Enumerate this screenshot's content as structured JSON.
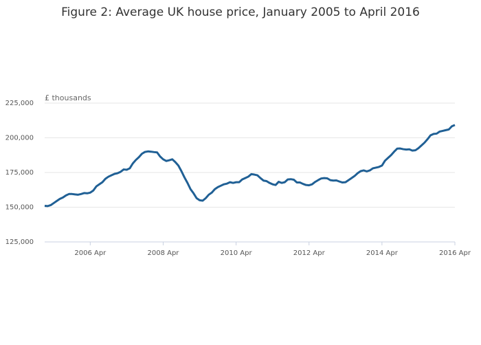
{
  "chart_data": {
    "type": "line",
    "title": "Figure 2: Average UK house price, January 2005 to April 2016",
    "y_label": "£ thousands",
    "x": [
      "2005 Jan",
      "2005 Feb",
      "2005 Mar",
      "2005 Apr",
      "2005 May",
      "2005 Jun",
      "2005 Jul",
      "2005 Aug",
      "2005 Sep",
      "2005 Oct",
      "2005 Nov",
      "2005 Dec",
      "2006 Jan",
      "2006 Feb",
      "2006 Mar",
      "2006 Apr",
      "2006 May",
      "2006 Jun",
      "2006 Jul",
      "2006 Aug",
      "2006 Sep",
      "2006 Oct",
      "2006 Nov",
      "2006 Dec",
      "2007 Jan",
      "2007 Feb",
      "2007 Mar",
      "2007 Apr",
      "2007 May",
      "2007 Jun",
      "2007 Jul",
      "2007 Aug",
      "2007 Sep",
      "2007 Oct",
      "2007 Nov",
      "2007 Dec",
      "2008 Jan",
      "2008 Feb",
      "2008 Mar",
      "2008 Apr",
      "2008 May",
      "2008 Jun",
      "2008 Jul",
      "2008 Aug",
      "2008 Sep",
      "2008 Oct",
      "2008 Nov",
      "2008 Dec",
      "2009 Jan",
      "2009 Feb",
      "2009 Mar",
      "2009 Apr",
      "2009 May",
      "2009 Jun",
      "2009 Jul",
      "2009 Aug",
      "2009 Sep",
      "2009 Oct",
      "2009 Nov",
      "2009 Dec",
      "2010 Jan",
      "2010 Feb",
      "2010 Mar",
      "2010 Apr",
      "2010 May",
      "2010 Jun",
      "2010 Jul",
      "2010 Aug",
      "2010 Sep",
      "2010 Oct",
      "2010 Nov",
      "2010 Dec",
      "2011 Jan",
      "2011 Feb",
      "2011 Mar",
      "2011 Apr",
      "2011 May",
      "2011 Jun",
      "2011 Jul",
      "2011 Aug",
      "2011 Sep",
      "2011 Oct",
      "2011 Nov",
      "2011 Dec",
      "2012 Jan",
      "2012 Feb",
      "2012 Mar",
      "2012 Apr",
      "2012 May",
      "2012 Jun",
      "2012 Jul",
      "2012 Aug",
      "2012 Sep",
      "2012 Oct",
      "2012 Nov",
      "2012 Dec",
      "2013 Jan",
      "2013 Feb",
      "2013 Mar",
      "2013 Apr",
      "2013 May",
      "2013 Jun",
      "2013 Jul",
      "2013 Aug",
      "2013 Sep",
      "2013 Oct",
      "2013 Nov",
      "2013 Dec",
      "2014 Jan",
      "2014 Feb",
      "2014 Mar",
      "2014 Apr",
      "2014 May",
      "2014 Jun",
      "2014 Jul",
      "2014 Aug",
      "2014 Sep",
      "2014 Oct",
      "2014 Nov",
      "2014 Dec",
      "2015 Jan",
      "2015 Feb",
      "2015 Mar",
      "2015 Apr",
      "2015 May",
      "2015 Jun",
      "2015 Jul",
      "2015 Aug",
      "2015 Sep",
      "2015 Oct",
      "2015 Nov",
      "2015 Dec",
      "2016 Jan",
      "2016 Feb",
      "2016 Mar",
      "2016 Apr"
    ],
    "series": [
      {
        "color": "#206095",
        "values": [
          151000,
          150800,
          151500,
          153000,
          154500,
          156000,
          157000,
          158500,
          159500,
          159500,
          159200,
          159000,
          159500,
          160200,
          160000,
          160500,
          162000,
          165000,
          166500,
          168000,
          170500,
          172000,
          173000,
          174000,
          174500,
          175500,
          177200,
          177000,
          178000,
          181500,
          184000,
          186000,
          188500,
          189800,
          190200,
          190000,
          189700,
          189500,
          186500,
          184500,
          183300,
          183800,
          184500,
          182500,
          180000,
          176000,
          171500,
          167500,
          163000,
          160000,
          156500,
          155000,
          154700,
          156500,
          159000,
          160500,
          163000,
          164500,
          165500,
          166500,
          167000,
          168000,
          167500,
          168000,
          168000,
          170000,
          171000,
          172000,
          173800,
          173500,
          173000,
          171000,
          169200,
          168800,
          167500,
          166500,
          166000,
          168300,
          167500,
          168000,
          170000,
          170200,
          169800,
          167800,
          167800,
          166800,
          166000,
          165800,
          166500,
          168200,
          169500,
          170700,
          171000,
          170800,
          169500,
          169200,
          169300,
          168500,
          167800,
          168000,
          169500,
          171000,
          172500,
          174500,
          176000,
          176500,
          175800,
          176500,
          178000,
          178500,
          179000,
          180000,
          183500,
          185500,
          187500,
          190000,
          192200,
          192300,
          191800,
          191500,
          191700,
          190800,
          191000,
          192500,
          194500,
          196500,
          199000,
          201800,
          202800,
          203000,
          204500,
          205000,
          205500,
          206000,
          208300,
          209200
        ]
      }
    ],
    "xticks": [
      "2006 Apr",
      "2008 Apr",
      "2010 Apr",
      "2012 Apr",
      "2014 Apr",
      "2016 Apr"
    ],
    "ylim": [
      125000,
      225000
    ],
    "yticks": [
      {
        "value": 125000,
        "label": "125,000"
      },
      {
        "value": 150000,
        "label": "150,000"
      },
      {
        "value": 175000,
        "label": "175,000"
      },
      {
        "value": 200000,
        "label": "200,000"
      },
      {
        "value": 225000,
        "label": "225,000"
      }
    ],
    "grid": true
  }
}
